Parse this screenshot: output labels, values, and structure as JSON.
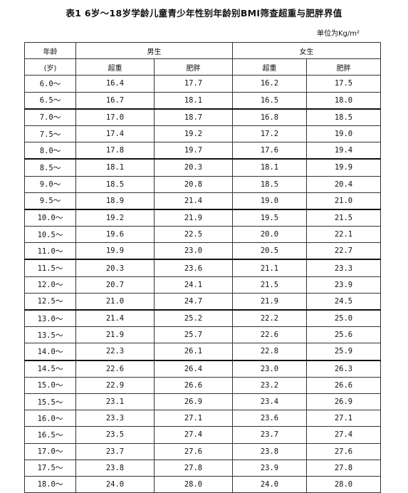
{
  "title": "表1 6岁～18岁学龄儿童青少年性别年龄别BMI筛查超重与肥胖界值",
  "unit": "单位为Kg/m²",
  "headers": {
    "age_line1": "年龄",
    "age_line2": "(岁)",
    "male": "男生",
    "female": "女生",
    "overweight": "超重",
    "obese": "肥胖"
  },
  "rows": [
    {
      "age": "6.0～",
      "m_ow": "16.4",
      "m_ob": "17.7",
      "f_ow": "16.2",
      "f_ob": "17.5"
    },
    {
      "age": "6.5～",
      "m_ow": "16.7",
      "m_ob": "18.1",
      "f_ow": "16.5",
      "f_ob": "18.0"
    },
    {
      "age": "7.0～",
      "m_ow": "17.0",
      "m_ob": "18.7",
      "f_ow": "16.8",
      "f_ob": "18.5"
    },
    {
      "age": "7.5～",
      "m_ow": "17.4",
      "m_ob": "19.2",
      "f_ow": "17.2",
      "f_ob": "19.0"
    },
    {
      "age": "8.0～",
      "m_ow": "17.8",
      "m_ob": "19.7",
      "f_ow": "17.6",
      "f_ob": "19.4"
    },
    {
      "age": "8.5～",
      "m_ow": "18.1",
      "m_ob": "20.3",
      "f_ow": "18.1",
      "f_ob": "19.9"
    },
    {
      "age": "9.0～",
      "m_ow": "18.5",
      "m_ob": "20.8",
      "f_ow": "18.5",
      "f_ob": "20.4"
    },
    {
      "age": "9.5～",
      "m_ow": "18.9",
      "m_ob": "21.4",
      "f_ow": "19.0",
      "f_ob": "21.0"
    },
    {
      "age": "10.0～",
      "m_ow": "19.2",
      "m_ob": "21.9",
      "f_ow": "19.5",
      "f_ob": "21.5"
    },
    {
      "age": "10.5～",
      "m_ow": "19.6",
      "m_ob": "22.5",
      "f_ow": "20.0",
      "f_ob": "22.1"
    },
    {
      "age": "11.0～",
      "m_ow": "19.9",
      "m_ob": "23.0",
      "f_ow": "20.5",
      "f_ob": "22.7"
    },
    {
      "age": "11.5～",
      "m_ow": "20.3",
      "m_ob": "23.6",
      "f_ow": "21.1",
      "f_ob": "23.3"
    },
    {
      "age": "12.0～",
      "m_ow": "20.7",
      "m_ob": "24.1",
      "f_ow": "21.5",
      "f_ob": "23.9"
    },
    {
      "age": "12.5～",
      "m_ow": "21.0",
      "m_ob": "24.7",
      "f_ow": "21.9",
      "f_ob": "24.5"
    },
    {
      "age": "13.0～",
      "m_ow": "21.4",
      "m_ob": "25.2",
      "f_ow": "22.2",
      "f_ob": "25.0"
    },
    {
      "age": "13.5～",
      "m_ow": "21.9",
      "m_ob": "25.7",
      "f_ow": "22.6",
      "f_ob": "25.6"
    },
    {
      "age": "14.0～",
      "m_ow": "22.3",
      "m_ob": "26.1",
      "f_ow": "22.8",
      "f_ob": "25.9"
    },
    {
      "age": "14.5～",
      "m_ow": "22.6",
      "m_ob": "26.4",
      "f_ow": "23.0",
      "f_ob": "26.3"
    },
    {
      "age": "15.0～",
      "m_ow": "22.9",
      "m_ob": "26.6",
      "f_ow": "23.2",
      "f_ob": "26.6"
    },
    {
      "age": "15.5～",
      "m_ow": "23.1",
      "m_ob": "26.9",
      "f_ow": "23.4",
      "f_ob": "26.9"
    },
    {
      "age": "16.0～",
      "m_ow": "23.3",
      "m_ob": "27.1",
      "f_ow": "23.6",
      "f_ob": "27.1"
    },
    {
      "age": "16.5～",
      "m_ow": "23.5",
      "m_ob": "27.4",
      "f_ow": "23.7",
      "f_ob": "27.4"
    },
    {
      "age": "17.0～",
      "m_ow": "23.7",
      "m_ob": "27.6",
      "f_ow": "23.8",
      "f_ob": "27.6"
    },
    {
      "age": "17.5～",
      "m_ow": "23.8",
      "m_ob": "27.8",
      "f_ow": "23.9",
      "f_ob": "27.8"
    },
    {
      "age": "18.0～",
      "m_ow": "24.0",
      "m_ob": "28.0",
      "f_ow": "24.0",
      "f_ob": "28.0"
    }
  ]
}
